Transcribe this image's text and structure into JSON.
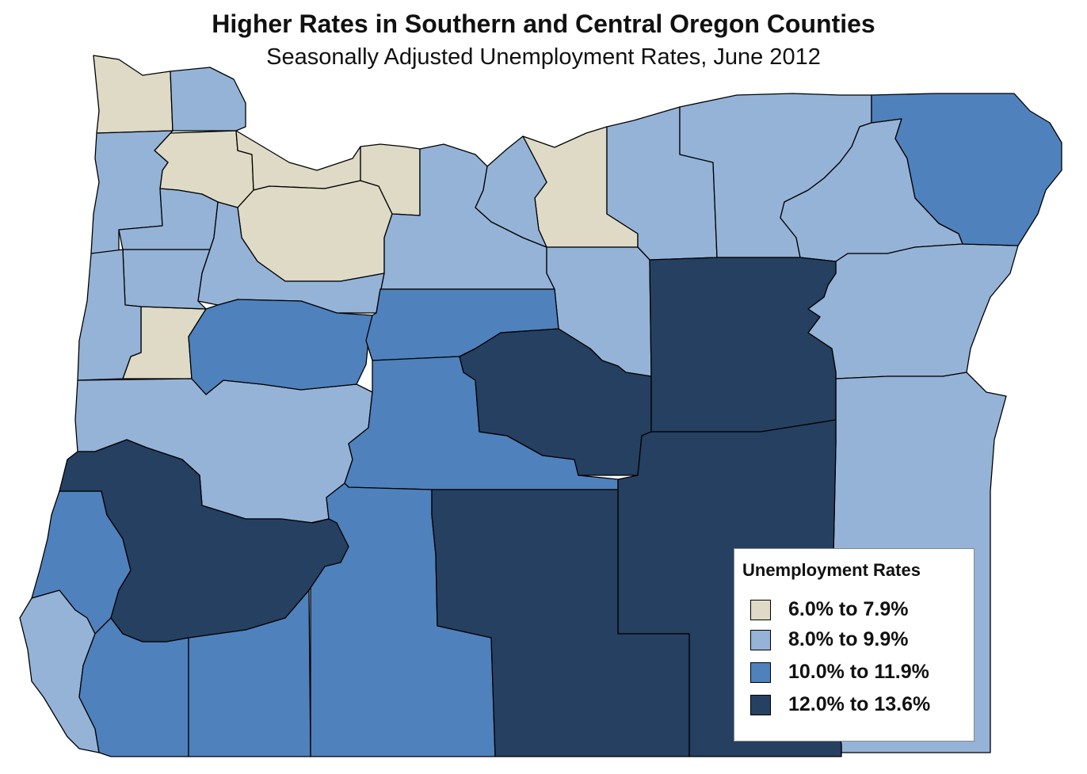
{
  "title": "Higher Rates in Southern and Central Oregon Counties",
  "subtitle": "Seasonally Adjusted Unemployment Rates, June 2012",
  "legend": {
    "title": "Unemployment Rates",
    "classes": [
      {
        "label": "6.0% to 7.9%",
        "color": "#dedac5"
      },
      {
        "label": "8.0% to 9.9%",
        "color": "#95b3d7"
      },
      {
        "label": "10.0% to 11.9%",
        "color": "#4f81bd"
      },
      {
        "label": "12.0% to 13.6%",
        "color": "#264061"
      }
    ]
  },
  "counties_by_class": {
    "6.0% to 7.9%": [
      "Clatsop",
      "Washington",
      "Multnomah",
      "Clackamas",
      "Hood River",
      "Sherman",
      "Benton"
    ],
    "8.0% to 9.9%": [
      "Columbia",
      "Tillamook",
      "Yamhill",
      "Polk",
      "Marion",
      "Lincoln",
      "Lane",
      "Wasco",
      "Gilliam",
      "Morrow",
      "Umatilla",
      "Union",
      "Wheeler",
      "Baker",
      "Malheur",
      "Curry"
    ],
    "10.0% to 11.9%": [
      "Wallowa",
      "Linn",
      "Jefferson",
      "Deschutes",
      "Coos",
      "Josephine",
      "Jackson",
      "Klamath"
    ],
    "12.0% to 13.6%": [
      "Douglas",
      "Crook",
      "Grant",
      "Harney",
      "Lake"
    ]
  }
}
